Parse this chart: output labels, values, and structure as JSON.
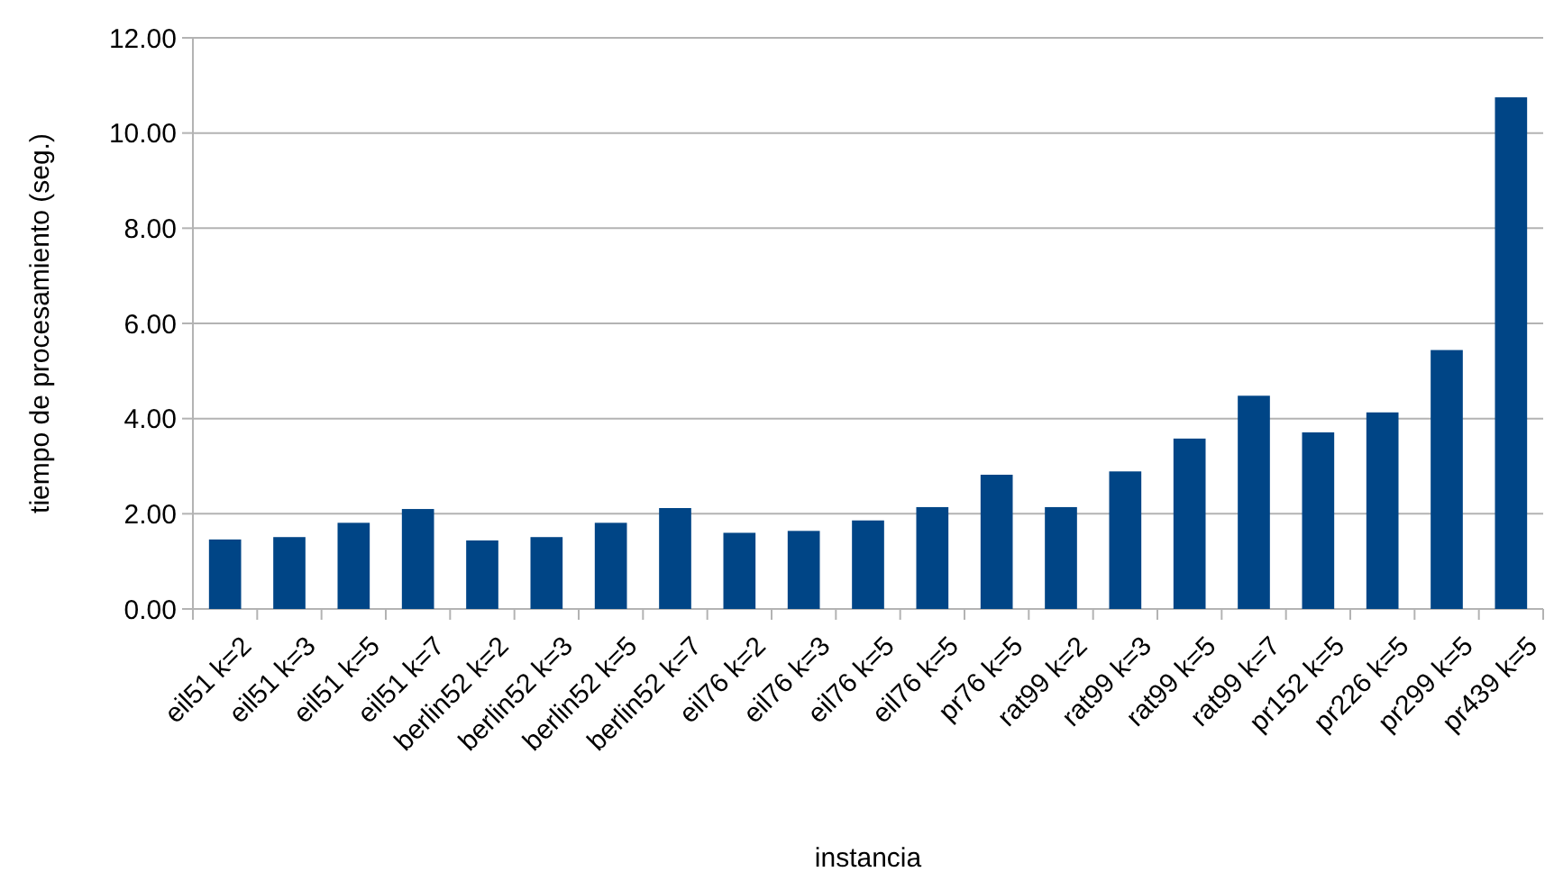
{
  "chart_data": {
    "type": "bar",
    "xlabel": "instancia",
    "ylabel": "tiempo de procesamiento (seg.)",
    "categories": [
      "eil51 k=2",
      "eil51 k=3",
      "eil51 k=5",
      "eil51 k=7",
      "berlin52 k=2",
      "berlin52 k=3",
      "berlin52 k=5",
      "berlin52 k=7",
      "eil76 k=2",
      "eil76 k=3",
      "eil76 k=5",
      "eil76 k=5",
      "pr76 k=5",
      "rat99 k=2",
      "rat99 k=3",
      "rat99 k=5",
      "rat99 k=7",
      "pr152 k=5",
      "pr226 k=5",
      "pr299 k=5",
      "pr439 k=5"
    ],
    "values": [
      1.46,
      1.51,
      1.81,
      2.1,
      1.44,
      1.51,
      1.81,
      2.12,
      1.6,
      1.64,
      1.86,
      2.14,
      2.82,
      2.14,
      2.89,
      3.58,
      4.48,
      3.71,
      4.13,
      5.44,
      10.75
    ],
    "color": "#004586",
    "ylim": [
      0,
      12
    ],
    "yticks": [
      {
        "value": 0,
        "label": "0.00"
      },
      {
        "value": 2,
        "label": "2.00"
      },
      {
        "value": 4,
        "label": "4.00"
      },
      {
        "value": 6,
        "label": "6.00"
      },
      {
        "value": 8,
        "label": "8.00"
      },
      {
        "value": 10,
        "label": "10.00"
      },
      {
        "value": 12,
        "label": "12.00"
      }
    ],
    "grid": "y"
  }
}
